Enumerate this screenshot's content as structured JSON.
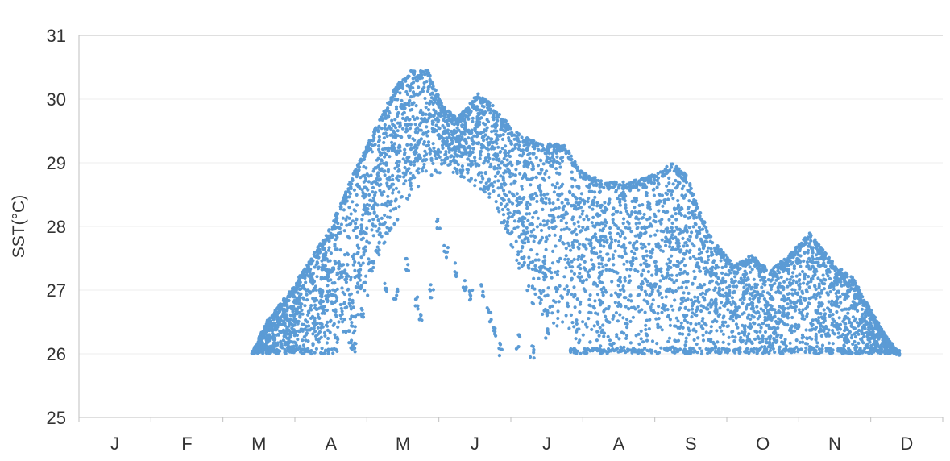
{
  "chart_data": {
    "type": "scatter",
    "title": "",
    "xlabel": "",
    "ylabel": "SST(°C)",
    "x_categories": [
      "J",
      "F",
      "M",
      "A",
      "M",
      "J",
      "J",
      "A",
      "S",
      "O",
      "N",
      "D"
    ],
    "ylim": [
      25,
      31
    ],
    "y_ticks": [
      "25",
      "26",
      "27",
      "28",
      "29",
      "30",
      "31"
    ],
    "grid": "horizontal",
    "legend": "none",
    "marker_color": "#5b9bd5",
    "series": [
      {
        "x_unit": "month",
        "upper_envelope": [
          [
            2.4,
            26.0
          ],
          [
            2.6,
            26.5
          ],
          [
            3.0,
            27.1
          ],
          [
            3.5,
            28.0
          ],
          [
            3.8,
            28.8
          ],
          [
            4.1,
            29.5
          ],
          [
            4.4,
            30.2
          ],
          [
            4.6,
            30.45
          ],
          [
            4.85,
            30.45
          ],
          [
            5.05,
            29.9
          ],
          [
            5.25,
            29.7
          ],
          [
            5.55,
            30.1
          ],
          [
            5.75,
            29.9
          ],
          [
            6.05,
            29.5
          ],
          [
            6.4,
            29.3
          ],
          [
            6.75,
            29.3
          ],
          [
            6.95,
            28.9
          ],
          [
            7.3,
            28.7
          ],
          [
            7.65,
            28.7
          ],
          [
            7.95,
            28.8
          ],
          [
            8.25,
            29.0
          ],
          [
            8.45,
            28.8
          ],
          [
            8.6,
            28.3
          ],
          [
            8.8,
            27.8
          ],
          [
            9.1,
            27.4
          ],
          [
            9.35,
            27.55
          ],
          [
            9.6,
            27.3
          ],
          [
            9.9,
            27.6
          ],
          [
            10.15,
            27.9
          ],
          [
            10.5,
            27.4
          ],
          [
            10.75,
            27.2
          ],
          [
            11.0,
            26.7
          ],
          [
            11.2,
            26.3
          ],
          [
            11.4,
            26.0
          ]
        ],
        "lower_envelope": [
          [
            2.4,
            26.0
          ],
          [
            3.5,
            26.0
          ],
          [
            3.85,
            26.3
          ],
          [
            4.2,
            27.5
          ],
          [
            4.6,
            28.5
          ],
          [
            4.85,
            28.7
          ],
          [
            5.1,
            28.9
          ],
          [
            5.5,
            28.6
          ],
          [
            5.8,
            28.3
          ],
          [
            6.0,
            27.6
          ],
          [
            6.3,
            26.7
          ],
          [
            6.6,
            26.3
          ],
          [
            6.9,
            26.0
          ],
          [
            11.4,
            26.0
          ]
        ],
        "sparse_points": [
          [
            3.78,
            26.1
          ],
          [
            3.83,
            26.05
          ],
          [
            3.95,
            26.7
          ],
          [
            4.1,
            27.4
          ],
          [
            4.25,
            27.1
          ],
          [
            4.4,
            26.9
          ],
          [
            4.55,
            27.4
          ],
          [
            4.7,
            26.8
          ],
          [
            4.74,
            26.6
          ],
          [
            4.9,
            27.0
          ],
          [
            5.0,
            28.0
          ],
          [
            5.1,
            27.6
          ],
          [
            5.25,
            27.3
          ],
          [
            5.35,
            27.1
          ],
          [
            5.45,
            26.9
          ],
          [
            5.6,
            27.0
          ],
          [
            5.7,
            26.6
          ],
          [
            5.78,
            26.3
          ],
          [
            5.85,
            26.05
          ],
          [
            6.1,
            26.2
          ],
          [
            6.3,
            26.05
          ],
          [
            6.5,
            26.3
          ]
        ]
      }
    ]
  }
}
